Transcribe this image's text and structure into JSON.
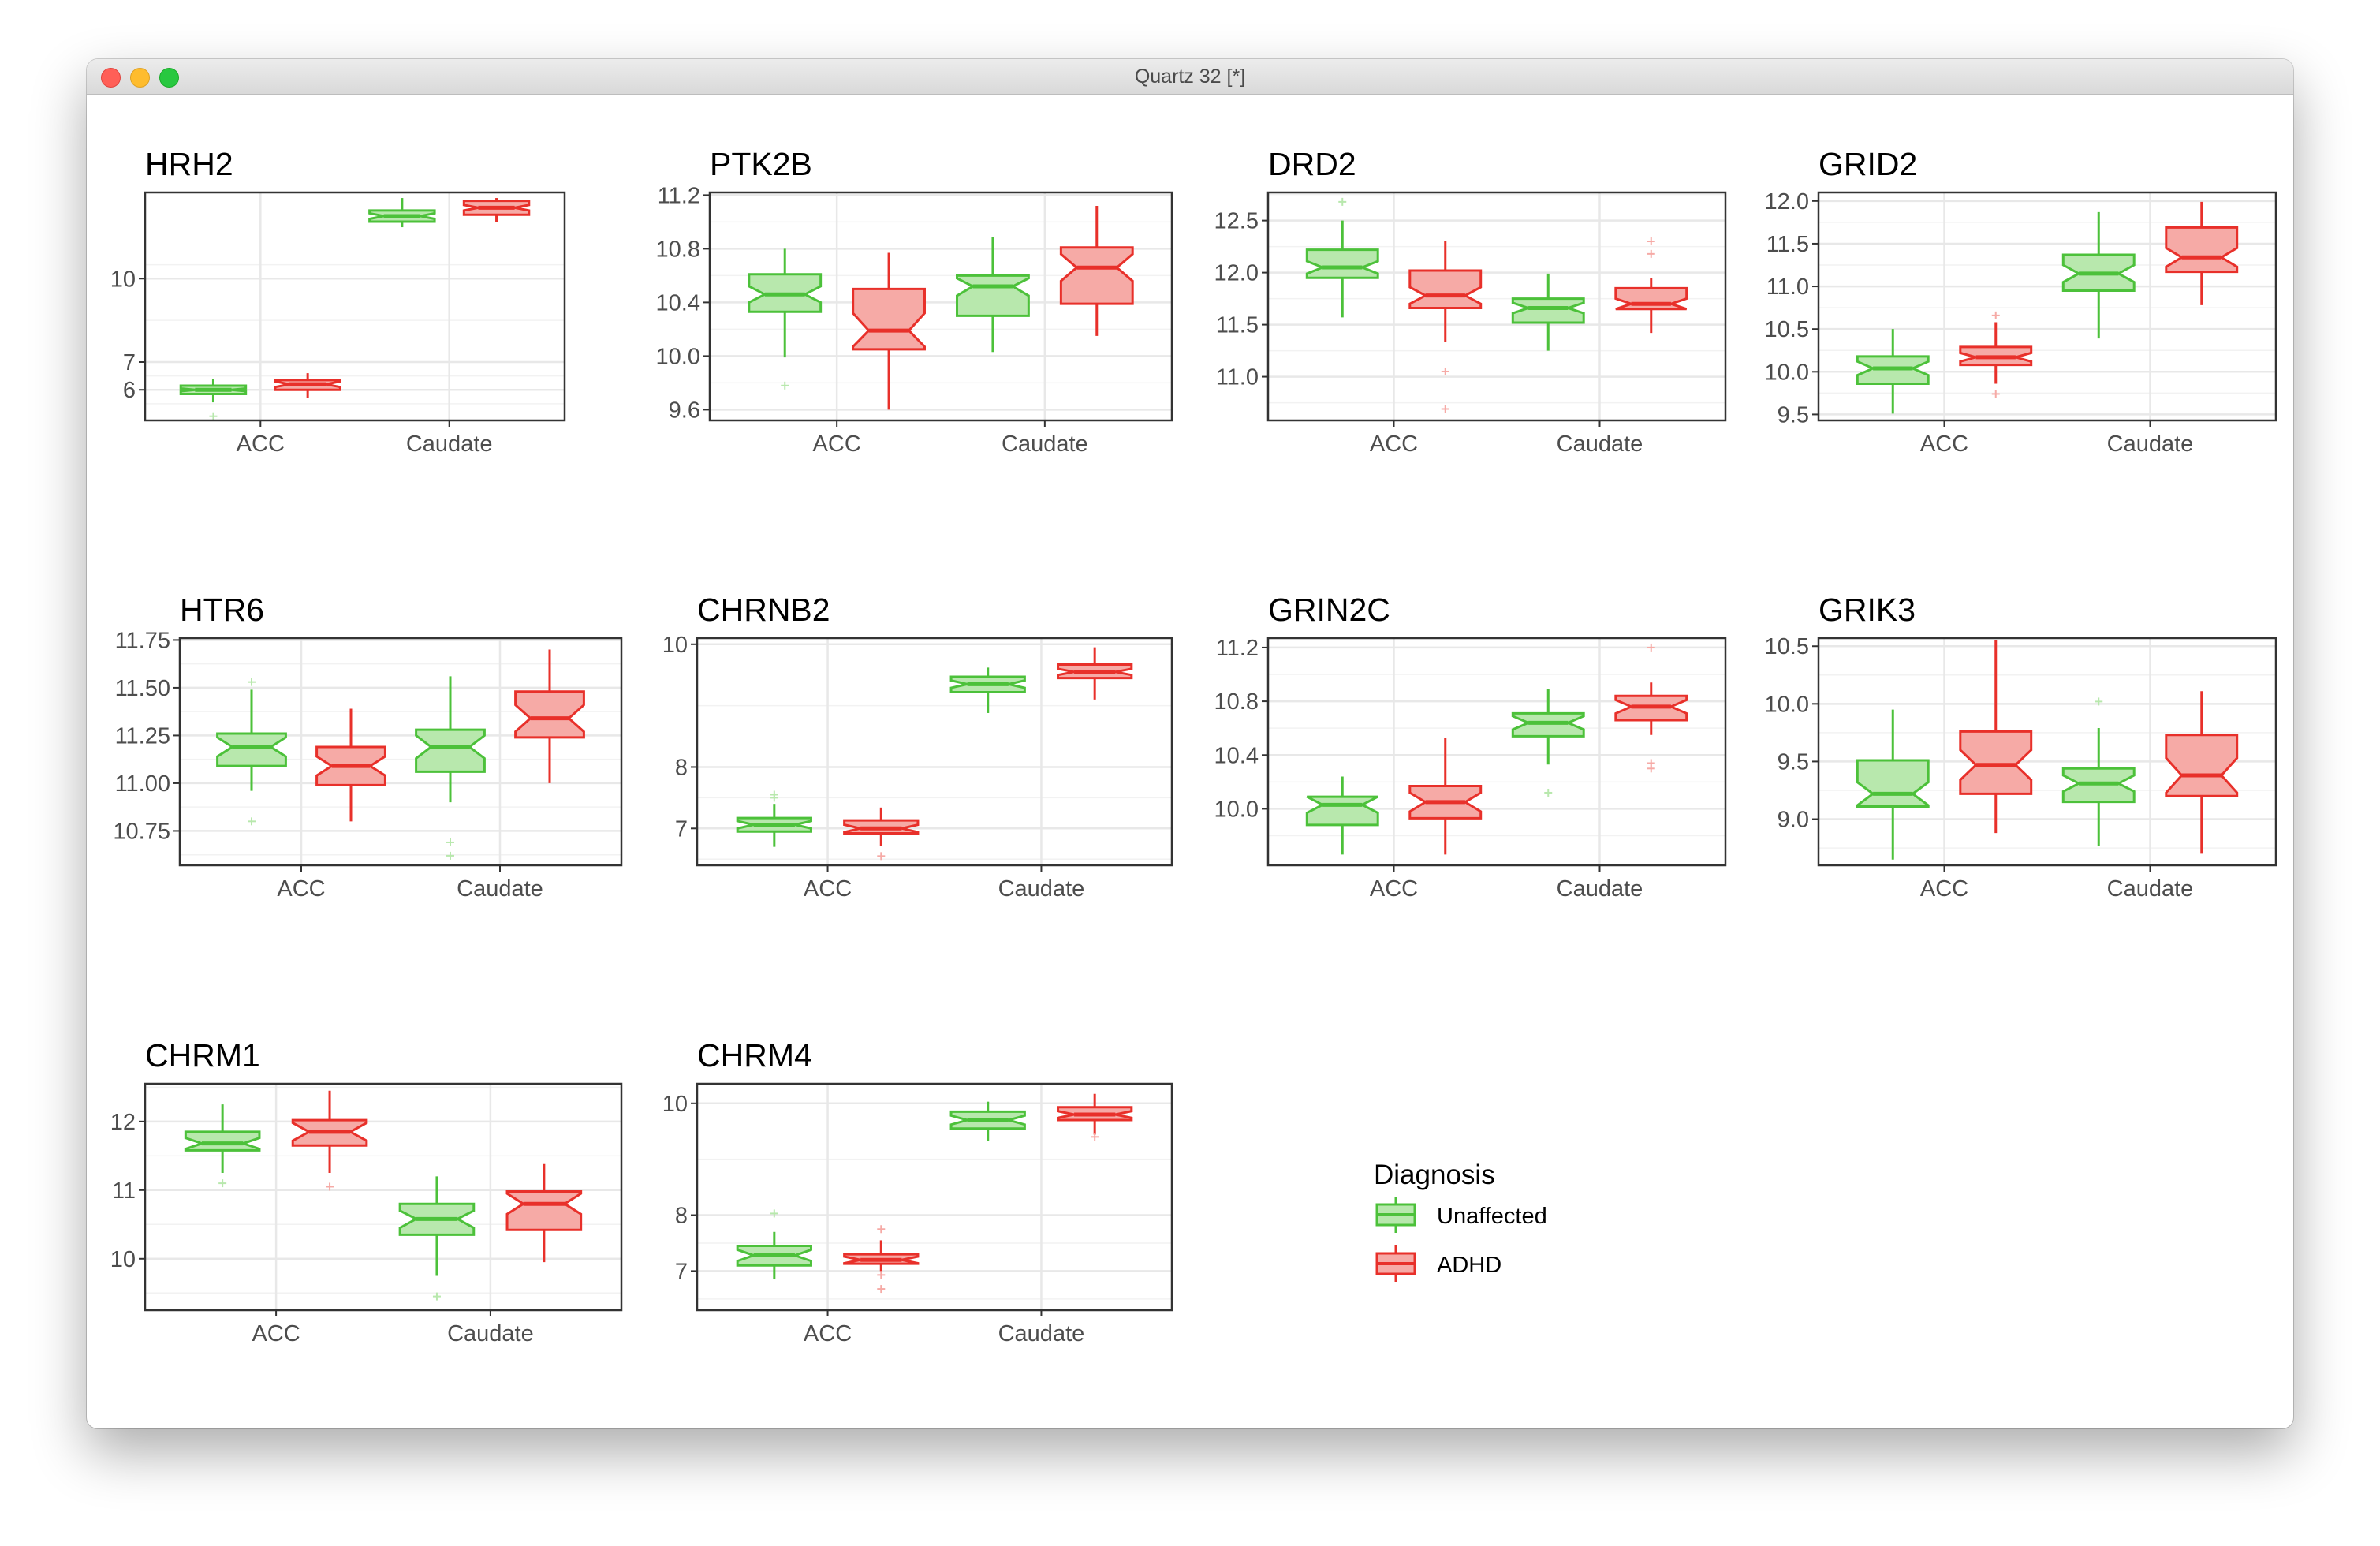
{
  "window": {
    "title": "Quartz 32 [*]"
  },
  "legend": {
    "title": "Diagnosis",
    "items": [
      {
        "label": "Unaffected",
        "stroke": "#4cc13a",
        "fill": "#b8e8ad"
      },
      {
        "label": "ADHD",
        "stroke": "#e8302a",
        "fill": "#f6aaa6"
      }
    ]
  },
  "chart_data": [
    {
      "type": "box",
      "title": "HRH2",
      "categories": [
        "ACC",
        "Caudate"
      ],
      "ylim": [
        4.9,
        13.1
      ],
      "yticks": [
        6,
        7,
        10
      ],
      "ytick_labels": [
        "6",
        "7",
        "10"
      ],
      "series": [
        {
          "name": "Unaffected",
          "boxes": [
            {
              "whisker_low": 5.55,
              "q1": 5.85,
              "median": 6.0,
              "q3": 6.15,
              "whisker_high": 6.4,
              "notch": [
                5.95,
                6.05
              ],
              "outliers": [
                5.05
              ]
            },
            {
              "whisker_low": 11.85,
              "q1": 12.05,
              "median": 12.25,
              "q3": 12.45,
              "whisker_high": 12.9,
              "notch": [
                12.15,
                12.35
              ],
              "outliers": []
            }
          ]
        },
        {
          "name": "ADHD",
          "boxes": [
            {
              "whisker_low": 5.7,
              "q1": 6.0,
              "median": 6.2,
              "q3": 6.35,
              "whisker_high": 6.6,
              "notch": [
                6.1,
                6.3
              ],
              "outliers": []
            },
            {
              "whisker_low": 12.05,
              "q1": 12.3,
              "median": 12.55,
              "q3": 12.8,
              "whisker_high": 12.9,
              "notch": [
                12.45,
                12.65
              ],
              "outliers": []
            }
          ]
        }
      ]
    },
    {
      "type": "box",
      "title": "PTK2B",
      "categories": [
        "ACC",
        "Caudate"
      ],
      "ylim": [
        9.52,
        11.22
      ],
      "yticks": [
        9.6,
        10.0,
        10.4,
        10.8,
        11.2
      ],
      "ytick_labels": [
        "9.6",
        "10.0",
        "10.4",
        "10.8",
        "11.2"
      ],
      "series": [
        {
          "name": "Unaffected",
          "boxes": [
            {
              "whisker_low": 9.99,
              "q1": 10.33,
              "median": 10.46,
              "q3": 10.61,
              "whisker_high": 10.8,
              "notch": [
                10.4,
                10.52
              ],
              "outliers": [
                9.78
              ]
            },
            {
              "whisker_low": 10.03,
              "q1": 10.3,
              "median": 10.52,
              "q3": 10.6,
              "whisker_high": 10.89,
              "notch": [
                10.45,
                10.58
              ],
              "outliers": []
            }
          ]
        },
        {
          "name": "ADHD",
          "boxes": [
            {
              "whisker_low": 9.6,
              "q1": 10.05,
              "median": 10.19,
              "q3": 10.5,
              "whisker_high": 10.77,
              "notch": [
                10.07,
                10.32
              ],
              "outliers": []
            },
            {
              "whisker_low": 10.15,
              "q1": 10.39,
              "median": 10.66,
              "q3": 10.81,
              "whisker_high": 11.12,
              "notch": [
                10.56,
                10.76
              ],
              "outliers": []
            }
          ]
        }
      ]
    },
    {
      "type": "box",
      "title": "DRD2",
      "categories": [
        "ACC",
        "Caudate"
      ],
      "ylim": [
        10.58,
        12.77
      ],
      "yticks": [
        11.0,
        11.5,
        12.0,
        12.5
      ],
      "ytick_labels": [
        "11.0",
        "11.5",
        "12.0",
        "12.5"
      ],
      "series": [
        {
          "name": "Unaffected",
          "boxes": [
            {
              "whisker_low": 11.57,
              "q1": 11.95,
              "median": 12.05,
              "q3": 12.22,
              "whisker_high": 12.5,
              "notch": [
                11.99,
                12.11
              ],
              "outliers": [
                12.68
              ]
            },
            {
              "whisker_low": 11.25,
              "q1": 11.52,
              "median": 11.66,
              "q3": 11.75,
              "whisker_high": 11.99,
              "notch": [
                11.61,
                11.71
              ],
              "outliers": []
            }
          ]
        },
        {
          "name": "ADHD",
          "boxes": [
            {
              "whisker_low": 11.33,
              "q1": 11.66,
              "median": 11.78,
              "q3": 12.02,
              "whisker_high": 12.3,
              "notch": [
                11.7,
                11.86
              ],
              "outliers": [
                11.05,
                10.69
              ]
            },
            {
              "whisker_low": 11.42,
              "q1": 11.65,
              "median": 11.7,
              "q3": 11.85,
              "whisker_high": 11.95,
              "notch": [
                11.65,
                11.75
              ],
              "outliers": [
                12.3,
                12.18
              ]
            }
          ]
        }
      ]
    },
    {
      "type": "box",
      "title": "GRID2",
      "categories": [
        "ACC",
        "Caudate"
      ],
      "ylim": [
        9.43,
        12.1
      ],
      "yticks": [
        9.5,
        10.0,
        10.5,
        11.0,
        11.5,
        12.0
      ],
      "ytick_labels": [
        "9.5",
        "10.0",
        "10.5",
        "11.0",
        "11.5",
        "12.0"
      ],
      "series": [
        {
          "name": "Unaffected",
          "boxes": [
            {
              "whisker_low": 9.51,
              "q1": 9.86,
              "median": 10.04,
              "q3": 10.18,
              "whisker_high": 10.5,
              "notch": [
                9.96,
                10.12
              ],
              "outliers": []
            },
            {
              "whisker_low": 10.39,
              "q1": 10.95,
              "median": 11.15,
              "q3": 11.37,
              "whisker_high": 11.87,
              "notch": [
                11.05,
                11.25
              ],
              "outliers": []
            }
          ]
        },
        {
          "name": "ADHD",
          "boxes": [
            {
              "whisker_low": 9.86,
              "q1": 10.08,
              "median": 10.17,
              "q3": 10.29,
              "whisker_high": 10.58,
              "notch": [
                10.12,
                10.22
              ],
              "outliers": [
                10.66,
                9.74
              ]
            },
            {
              "whisker_low": 10.78,
              "q1": 11.17,
              "median": 11.34,
              "q3": 11.69,
              "whisker_high": 11.99,
              "notch": [
                11.23,
                11.45
              ],
              "outliers": []
            }
          ]
        }
      ]
    },
    {
      "type": "box",
      "title": "HTR6",
      "categories": [
        "ACC",
        "Caudate"
      ],
      "ylim": [
        10.57,
        11.76
      ],
      "yticks": [
        10.75,
        11.0,
        11.25,
        11.5,
        11.75
      ],
      "ytick_labels": [
        "10.75",
        "11.00",
        "11.25",
        "11.50",
        "11.75"
      ],
      "series": [
        {
          "name": "Unaffected",
          "boxes": [
            {
              "whisker_low": 10.96,
              "q1": 11.09,
              "median": 11.19,
              "q3": 11.26,
              "whisker_high": 11.49,
              "notch": [
                11.14,
                11.24
              ],
              "outliers": [
                11.53,
                10.8
              ]
            },
            {
              "whisker_low": 10.9,
              "q1": 11.06,
              "median": 11.19,
              "q3": 11.28,
              "whisker_high": 11.56,
              "notch": [
                11.13,
                11.25
              ],
              "outliers": [
                10.69,
                10.62
              ]
            }
          ]
        },
        {
          "name": "ADHD",
          "boxes": [
            {
              "whisker_low": 10.8,
              "q1": 10.99,
              "median": 11.09,
              "q3": 11.19,
              "whisker_high": 11.39,
              "notch": [
                11.04,
                11.14
              ],
              "outliers": []
            },
            {
              "whisker_low": 11.0,
              "q1": 11.24,
              "median": 11.34,
              "q3": 11.48,
              "whisker_high": 11.7,
              "notch": [
                11.27,
                11.41
              ],
              "outliers": []
            }
          ]
        }
      ]
    },
    {
      "type": "box",
      "title": "CHRNB2",
      "categories": [
        "ACC",
        "Caudate"
      ],
      "ylim": [
        6.4,
        10.1
      ],
      "yticks": [
        7,
        8,
        10
      ],
      "ytick_labels": [
        "7",
        "8",
        "10"
      ],
      "series": [
        {
          "name": "Unaffected",
          "boxes": [
            {
              "whisker_low": 6.7,
              "q1": 6.95,
              "median": 7.06,
              "q3": 7.17,
              "whisker_high": 7.4,
              "notch": [
                7.0,
                7.12
              ],
              "outliers": [
                7.55,
                7.5
              ]
            },
            {
              "whisker_low": 8.88,
              "q1": 9.22,
              "median": 9.35,
              "q3": 9.47,
              "whisker_high": 9.62,
              "notch": [
                9.29,
                9.41
              ],
              "outliers": []
            }
          ]
        },
        {
          "name": "ADHD",
          "boxes": [
            {
              "whisker_low": 6.72,
              "q1": 6.92,
              "median": 7.0,
              "q3": 7.13,
              "whisker_high": 7.34,
              "notch": [
                6.94,
                7.06
              ],
              "outliers": [
                6.55
              ]
            },
            {
              "whisker_low": 9.1,
              "q1": 9.45,
              "median": 9.55,
              "q3": 9.67,
              "whisker_high": 9.95,
              "notch": [
                9.5,
                9.6
              ],
              "outliers": []
            }
          ]
        }
      ]
    },
    {
      "type": "box",
      "title": "GRIN2C",
      "categories": [
        "ACC",
        "Caudate"
      ],
      "ylim": [
        9.58,
        11.27
      ],
      "yticks": [
        10.0,
        10.4,
        10.8,
        11.2
      ],
      "ytick_labels": [
        "10.0",
        "10.4",
        "10.8",
        "11.2"
      ],
      "series": [
        {
          "name": "Unaffected",
          "boxes": [
            {
              "whisker_low": 9.66,
              "q1": 9.88,
              "median": 10.03,
              "q3": 10.09,
              "whisker_high": 10.24,
              "notch": [
                9.97,
                10.09
              ],
              "outliers": []
            },
            {
              "whisker_low": 10.33,
              "q1": 10.54,
              "median": 10.64,
              "q3": 10.71,
              "whisker_high": 10.89,
              "notch": [
                10.59,
                10.69
              ],
              "outliers": [
                10.12
              ]
            }
          ]
        },
        {
          "name": "ADHD",
          "boxes": [
            {
              "whisker_low": 9.66,
              "q1": 9.93,
              "median": 10.05,
              "q3": 10.17,
              "whisker_high": 10.53,
              "notch": [
                9.98,
                10.12
              ],
              "outliers": []
            },
            {
              "whisker_low": 10.55,
              "q1": 10.66,
              "median": 10.76,
              "q3": 10.84,
              "whisker_high": 10.94,
              "notch": [
                10.71,
                10.81
              ],
              "outliers": [
                11.2,
                10.34,
                10.3
              ]
            }
          ]
        }
      ]
    },
    {
      "type": "box",
      "title": "GRIK3",
      "categories": [
        "ACC",
        "Caudate"
      ],
      "ylim": [
        8.6,
        10.57
      ],
      "yticks": [
        9.0,
        9.5,
        10.0,
        10.5
      ],
      "ytick_labels": [
        "9.0",
        "9.5",
        "10.0",
        "10.5"
      ],
      "series": [
        {
          "name": "Unaffected",
          "boxes": [
            {
              "whisker_low": 8.65,
              "q1": 9.11,
              "median": 9.22,
              "q3": 9.51,
              "whisker_high": 9.95,
              "notch": [
                9.12,
                9.32
              ],
              "outliers": []
            },
            {
              "whisker_low": 8.77,
              "q1": 9.15,
              "median": 9.31,
              "q3": 9.44,
              "whisker_high": 9.79,
              "notch": [
                9.24,
                9.38
              ],
              "outliers": [
                10.02
              ]
            }
          ]
        },
        {
          "name": "ADHD",
          "boxes": [
            {
              "whisker_low": 8.88,
              "q1": 9.22,
              "median": 9.47,
              "q3": 9.76,
              "whisker_high": 10.55,
              "notch": [
                9.34,
                9.6
              ],
              "outliers": []
            },
            {
              "whisker_low": 8.7,
              "q1": 9.2,
              "median": 9.38,
              "q3": 9.73,
              "whisker_high": 10.11,
              "notch": [
                9.23,
                9.53
              ],
              "outliers": []
            }
          ]
        }
      ]
    },
    {
      "type": "box",
      "title": "CHRM1",
      "categories": [
        "ACC",
        "Caudate"
      ],
      "ylim": [
        9.25,
        12.55
      ],
      "yticks": [
        10,
        11,
        12
      ],
      "ytick_labels": [
        "10",
        "11",
        "12"
      ],
      "series": [
        {
          "name": "Unaffected",
          "boxes": [
            {
              "whisker_low": 11.25,
              "q1": 11.58,
              "median": 11.68,
              "q3": 11.85,
              "whisker_high": 12.25,
              "notch": [
                11.6,
                11.76
              ],
              "outliers": [
                11.1
              ]
            },
            {
              "whisker_low": 9.75,
              "q1": 10.35,
              "median": 10.58,
              "q3": 10.8,
              "whisker_high": 11.2,
              "notch": [
                10.45,
                10.7
              ],
              "outliers": [
                9.45
              ]
            }
          ]
        },
        {
          "name": "ADHD",
          "boxes": [
            {
              "whisker_low": 11.25,
              "q1": 11.65,
              "median": 11.85,
              "q3": 12.02,
              "whisker_high": 12.45,
              "notch": [
                11.72,
                11.98
              ],
              "outliers": [
                11.05
              ]
            },
            {
              "whisker_low": 9.95,
              "q1": 10.42,
              "median": 10.8,
              "q3": 10.98,
              "whisker_high": 11.38,
              "notch": [
                10.65,
                10.95
              ],
              "outliers": []
            }
          ]
        }
      ]
    },
    {
      "type": "box",
      "title": "CHRM4",
      "categories": [
        "ACC",
        "Caudate"
      ],
      "ylim": [
        6.3,
        10.35
      ],
      "yticks": [
        7,
        8,
        10
      ],
      "ytick_labels": [
        "7",
        "8",
        "10"
      ],
      "series": [
        {
          "name": "Unaffected",
          "boxes": [
            {
              "whisker_low": 6.85,
              "q1": 7.1,
              "median": 7.28,
              "q3": 7.45,
              "whisker_high": 7.7,
              "notch": [
                7.18,
                7.38
              ],
              "outliers": [
                8.03
              ]
            },
            {
              "whisker_low": 9.33,
              "q1": 9.55,
              "median": 9.7,
              "q3": 9.85,
              "whisker_high": 10.03,
              "notch": [
                9.62,
                9.78
              ],
              "outliers": []
            }
          ]
        },
        {
          "name": "ADHD",
          "boxes": [
            {
              "whisker_low": 7.0,
              "q1": 7.13,
              "median": 7.2,
              "q3": 7.3,
              "whisker_high": 7.55,
              "notch": [
                7.14,
                7.26
              ],
              "outliers": [
                7.75,
                6.93,
                6.68
              ]
            },
            {
              "whisker_low": 9.44,
              "q1": 9.7,
              "median": 9.8,
              "q3": 9.93,
              "whisker_high": 10.17,
              "notch": [
                9.74,
                9.86
              ],
              "outliers": [
                9.4
              ]
            }
          ]
        }
      ]
    }
  ]
}
